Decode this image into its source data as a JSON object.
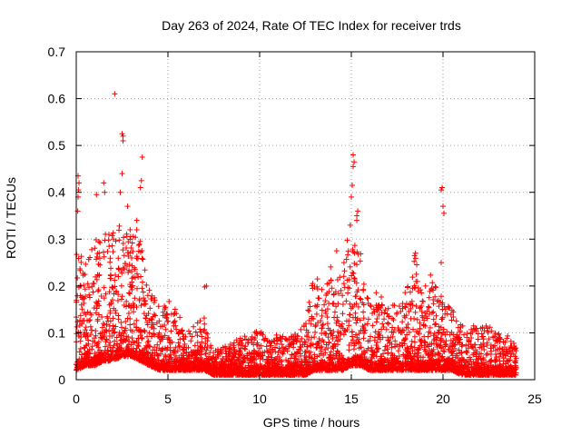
{
  "chart_data": {
    "type": "scatter",
    "title": "Day 263 of 2024, Rate Of TEC Index for receiver trds",
    "xlabel": "GPS time / hours",
    "ylabel": "ROTI / TECUs",
    "xlim": [
      0,
      25
    ],
    "ylim": [
      0,
      0.7
    ],
    "x_ticks": [
      0,
      5,
      10,
      15,
      20,
      25
    ],
    "x_tick_labels": [
      "0",
      "5",
      "10",
      "15",
      "20",
      "25"
    ],
    "y_ticks": [
      0,
      0.1,
      0.2,
      0.3,
      0.4,
      0.5,
      0.6,
      0.7
    ],
    "y_tick_labels": [
      "0",
      "0.1",
      "0.2",
      "0.3",
      "0.4",
      "0.5",
      "0.6",
      "0.7"
    ],
    "grid": true,
    "marker": "+",
    "marker_color": "#ff0000",
    "envelope": {
      "x": [
        0,
        0.5,
        1,
        1.5,
        2,
        2.5,
        3,
        3.5,
        4,
        4.5,
        5,
        5.5,
        6,
        6.5,
        7,
        7.5,
        8,
        8.5,
        9,
        9.5,
        10,
        10.5,
        11,
        11.5,
        12,
        12.5,
        13,
        13.5,
        14,
        14.5,
        15,
        15.5,
        16,
        16.5,
        17,
        17.5,
        18,
        18.5,
        19,
        19.5,
        20,
        20.5,
        21,
        21.5,
        22,
        22.5,
        23,
        23.5,
        24
      ],
      "upper": [
        0.28,
        0.26,
        0.3,
        0.33,
        0.32,
        0.35,
        0.32,
        0.3,
        0.2,
        0.16,
        0.17,
        0.15,
        0.1,
        0.12,
        0.14,
        0.06,
        0.07,
        0.08,
        0.09,
        0.1,
        0.11,
        0.09,
        0.1,
        0.09,
        0.1,
        0.13,
        0.23,
        0.2,
        0.26,
        0.24,
        0.35,
        0.28,
        0.2,
        0.18,
        0.17,
        0.16,
        0.19,
        0.27,
        0.2,
        0.24,
        0.17,
        0.15,
        0.12,
        0.12,
        0.11,
        0.12,
        0.1,
        0.1,
        0.07
      ],
      "lower": [
        0.02,
        0.03,
        0.03,
        0.04,
        0.04,
        0.05,
        0.05,
        0.04,
        0.03,
        0.02,
        0.02,
        0.02,
        0.02,
        0.02,
        0.02,
        0.01,
        0.01,
        0.01,
        0.01,
        0.01,
        0.01,
        0.01,
        0.01,
        0.01,
        0.01,
        0.01,
        0.02,
        0.02,
        0.02,
        0.02,
        0.03,
        0.03,
        0.02,
        0.02,
        0.02,
        0.02,
        0.02,
        0.02,
        0.02,
        0.02,
        0.02,
        0.02,
        0.01,
        0.01,
        0.01,
        0.01,
        0.01,
        0.01,
        0.01
      ]
    },
    "outliers": [
      {
        "x": 2.1,
        "y": 0.61
      },
      {
        "x": 2.5,
        "y": 0.525
      },
      {
        "x": 2.55,
        "y": 0.52
      },
      {
        "x": 2.55,
        "y": 0.51
      },
      {
        "x": 3.6,
        "y": 0.475
      },
      {
        "x": 2.5,
        "y": 0.44
      },
      {
        "x": 3.55,
        "y": 0.425
      },
      {
        "x": 3.5,
        "y": 0.41
      },
      {
        "x": 0.1,
        "y": 0.435
      },
      {
        "x": 0.15,
        "y": 0.42
      },
      {
        "x": 0.12,
        "y": 0.405
      },
      {
        "x": 0.1,
        "y": 0.39
      },
      {
        "x": 0.08,
        "y": 0.36
      },
      {
        "x": 1.5,
        "y": 0.42
      },
      {
        "x": 1.1,
        "y": 0.395
      },
      {
        "x": 1.55,
        "y": 0.4
      },
      {
        "x": 2.4,
        "y": 0.4
      },
      {
        "x": 15.1,
        "y": 0.48
      },
      {
        "x": 15.15,
        "y": 0.465
      },
      {
        "x": 15.1,
        "y": 0.455
      },
      {
        "x": 15.05,
        "y": 0.415
      },
      {
        "x": 15.0,
        "y": 0.39
      },
      {
        "x": 15.3,
        "y": 0.35
      },
      {
        "x": 15.35,
        "y": 0.36
      },
      {
        "x": 15.3,
        "y": 0.34
      },
      {
        "x": 19.95,
        "y": 0.41
      },
      {
        "x": 19.9,
        "y": 0.405
      },
      {
        "x": 20.0,
        "y": 0.37
      },
      {
        "x": 20.05,
        "y": 0.355
      },
      {
        "x": 19.9,
        "y": 0.25
      },
      {
        "x": 18.5,
        "y": 0.27
      },
      {
        "x": 18.45,
        "y": 0.265
      },
      {
        "x": 14.6,
        "y": 0.25
      },
      {
        "x": 14.2,
        "y": 0.275
      },
      {
        "x": 7.1,
        "y": 0.2
      },
      {
        "x": 7.0,
        "y": 0.198
      },
      {
        "x": 3.3,
        "y": 0.32
      },
      {
        "x": 3.3,
        "y": 0.34
      },
      {
        "x": 2.8,
        "y": 0.37
      }
    ]
  }
}
